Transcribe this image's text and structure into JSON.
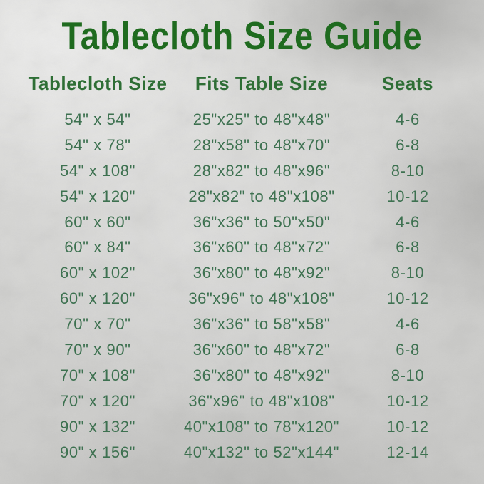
{
  "title": "Tablecloth Size Guide",
  "table": {
    "headers": [
      "Tablecloth Size",
      "Fits Table Size",
      "Seats"
    ],
    "rows": [
      [
        "54\" x 54\"",
        "25\"x25\" to 48\"x48\"",
        "4-6"
      ],
      [
        "54\" x 78\"",
        "28\"x58\" to 48\"x70\"",
        "6-8"
      ],
      [
        "54\" x 108\"",
        "28\"x82\" to 48\"x96\"",
        "8-10"
      ],
      [
        "54\" x 120\"",
        "28\"x82\" to 48\"x108\"",
        "10-12"
      ],
      [
        "60\" x 60\"",
        "36\"x36\" to 50\"x50\"",
        "4-6"
      ],
      [
        "60\" x 84\"",
        "36\"x60\" to 48\"x72\"",
        "6-8"
      ],
      [
        "60\" x 102\"",
        "36\"x80\" to 48\"x92\"",
        "8-10"
      ],
      [
        "60\" x 120\"",
        "36\"x96\" to 48\"x108\"",
        "10-12"
      ],
      [
        "70\" x 70\"",
        "36\"x36\" to 58\"x58\"",
        "4-6"
      ],
      [
        "70\" x 90\"",
        "36\"x60\" to 48\"x72\"",
        "6-8"
      ],
      [
        "70\" x 108\"",
        "36\"x80\" to 48\"x92\"",
        "8-10"
      ],
      [
        "70\" x 120\"",
        "36\"x96\" to 48\"x108\"",
        "10-12"
      ],
      [
        "90\" x 132\"",
        "40\"x108\" to 78\"x120\"",
        "10-12"
      ],
      [
        "90\" x 156\"",
        "40\"x132\" to 52\"x144\"",
        "12-14"
      ]
    ]
  },
  "colors": {
    "title_green": "#1f6b1f",
    "header_green": "#2e6e35",
    "row_green": "#3d7150",
    "background_silver": "#cfcfcd"
  }
}
